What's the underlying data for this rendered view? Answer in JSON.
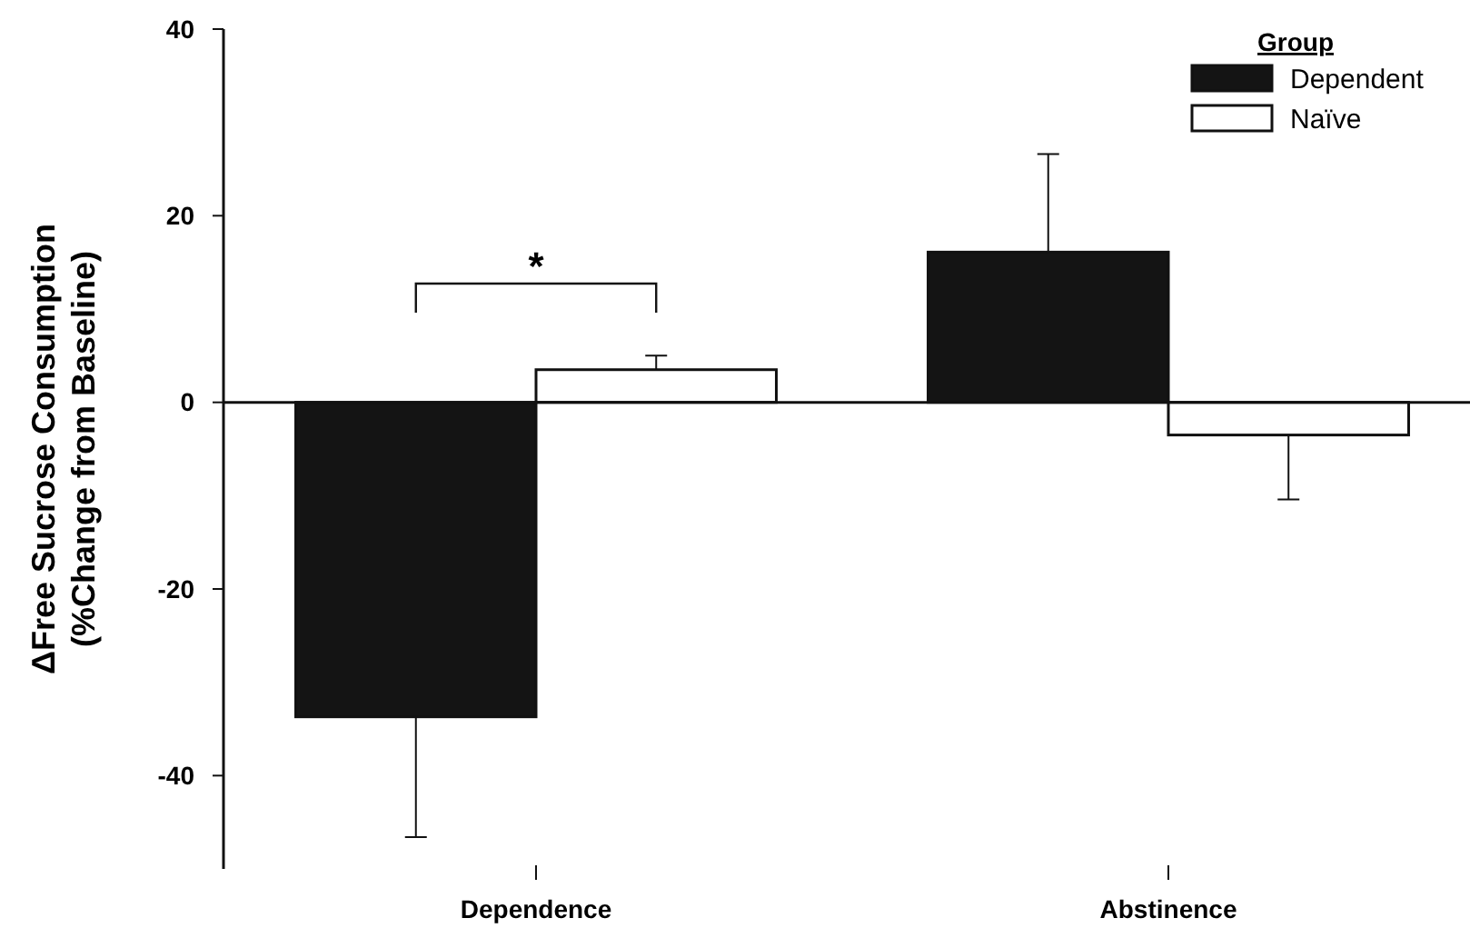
{
  "chart_data": {
    "type": "bar",
    "ylabel": "ΔFree Sucrose Consumption\n(%Change from Baseline)",
    "legend_title": "Group",
    "legend": "top right",
    "categories": [
      "Dependence",
      "Abstinence"
    ],
    "series": [
      {
        "name": "Dependent",
        "color": "#141414",
        "values": [
          -33.7,
          16.1
        ],
        "errors": [
          [
            -46.6,
            -33.7
          ],
          [
            16.1,
            26.6
          ]
        ]
      },
      {
        "name": "Naïve",
        "color": "#ffffff",
        "values": [
          3.5,
          -3.5
        ],
        "errors": [
          [
            3.5,
            5.0
          ],
          [
            -10.4,
            -3.5
          ]
        ]
      }
    ],
    "ylim": [
      -50,
      40
    ],
    "yticks": [
      -40,
      -20,
      0,
      20,
      40
    ],
    "ref_lines": [
      {
        "axis": "y",
        "value": 0
      }
    ],
    "annotations": [
      "*"
    ]
  }
}
